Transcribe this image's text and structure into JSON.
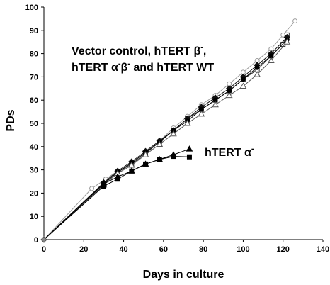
{
  "chart_data": {
    "type": "line",
    "title": "",
    "xlabel": "Days in culture",
    "ylabel": "PDs",
    "xlim": [
      0,
      140
    ],
    "ylim": [
      0,
      100
    ],
    "xticks": [
      0,
      20,
      40,
      60,
      80,
      100,
      120,
      140
    ],
    "yticks": [
      0,
      10,
      20,
      30,
      40,
      50,
      60,
      70,
      80,
      90,
      100
    ],
    "grid": false,
    "legend": "none",
    "annotations": [
      {
        "line1": "Vector control, hTERT β",
        "sup1": "-",
        "line1_tail": ",",
        "line2_a": "hTERT α",
        "sup2a": "-",
        "line2_b": "β",
        "sup2b": "-",
        "line2_tail": " and hTERT WT"
      },
      {
        "text": "hTERT α",
        "sup": "-"
      }
    ],
    "series": [
      {
        "marker": "circle-open-gray",
        "color": "#9a9a9a",
        "x": [
          0,
          24,
          31,
          37,
          44,
          51,
          58,
          65,
          72,
          79,
          86,
          93,
          100,
          107,
          114,
          120,
          126
        ],
        "y": [
          0,
          22,
          26,
          29.5,
          33.5,
          38,
          42.5,
          48,
          53,
          58,
          62,
          67,
          72,
          77,
          82,
          88,
          94
        ]
      },
      {
        "marker": "square-open",
        "color": "#333333",
        "x": [
          0,
          30,
          37,
          44,
          51,
          58,
          65,
          72,
          79,
          86,
          93,
          100,
          107,
          114,
          120,
          122
        ],
        "y": [
          0,
          24,
          29,
          32.5,
          37,
          42,
          47,
          52,
          56,
          60,
          64,
          69,
          73,
          79,
          84,
          88
        ]
      },
      {
        "marker": "diamond-filled",
        "color": "#111111",
        "x": [
          0,
          30,
          37,
          44,
          51,
          58,
          65,
          72,
          79,
          86,
          93,
          100,
          107,
          114,
          122
        ],
        "y": [
          0,
          24.5,
          29.5,
          33.5,
          38,
          42.5,
          47,
          52,
          57,
          61,
          65,
          70,
          75,
          80,
          87
        ]
      },
      {
        "marker": "circle-filled",
        "color": "#000000",
        "x": [
          0,
          30,
          37,
          44,
          51,
          58,
          65,
          72,
          79,
          86,
          93,
          100,
          107,
          114,
          122
        ],
        "y": [
          0,
          24,
          29,
          33,
          37.5,
          42,
          47,
          51,
          56,
          60,
          64,
          69,
          74,
          79,
          86
        ]
      },
      {
        "marker": "triangle-open",
        "color": "#555555",
        "x": [
          0,
          30,
          37,
          44,
          51,
          58,
          65,
          72,
          79,
          86,
          93,
          100,
          107,
          114,
          122
        ],
        "y": [
          0,
          23.5,
          28.5,
          32,
          36.5,
          41,
          45.5,
          50,
          54,
          58,
          62,
          66,
          71,
          77,
          85
        ]
      },
      {
        "marker": "triangle-filled",
        "color": "#000000",
        "x": [
          0,
          30,
          37,
          44,
          51,
          58,
          65,
          73
        ],
        "y": [
          0,
          24,
          27,
          29.5,
          32.5,
          34.5,
          36.5,
          39
        ]
      },
      {
        "marker": "square-filled",
        "color": "#000000",
        "x": [
          0,
          30,
          37,
          44,
          51,
          58,
          65,
          73
        ],
        "y": [
          0,
          23,
          26,
          29.5,
          32.5,
          34.5,
          35.8,
          35.6
        ]
      }
    ]
  }
}
